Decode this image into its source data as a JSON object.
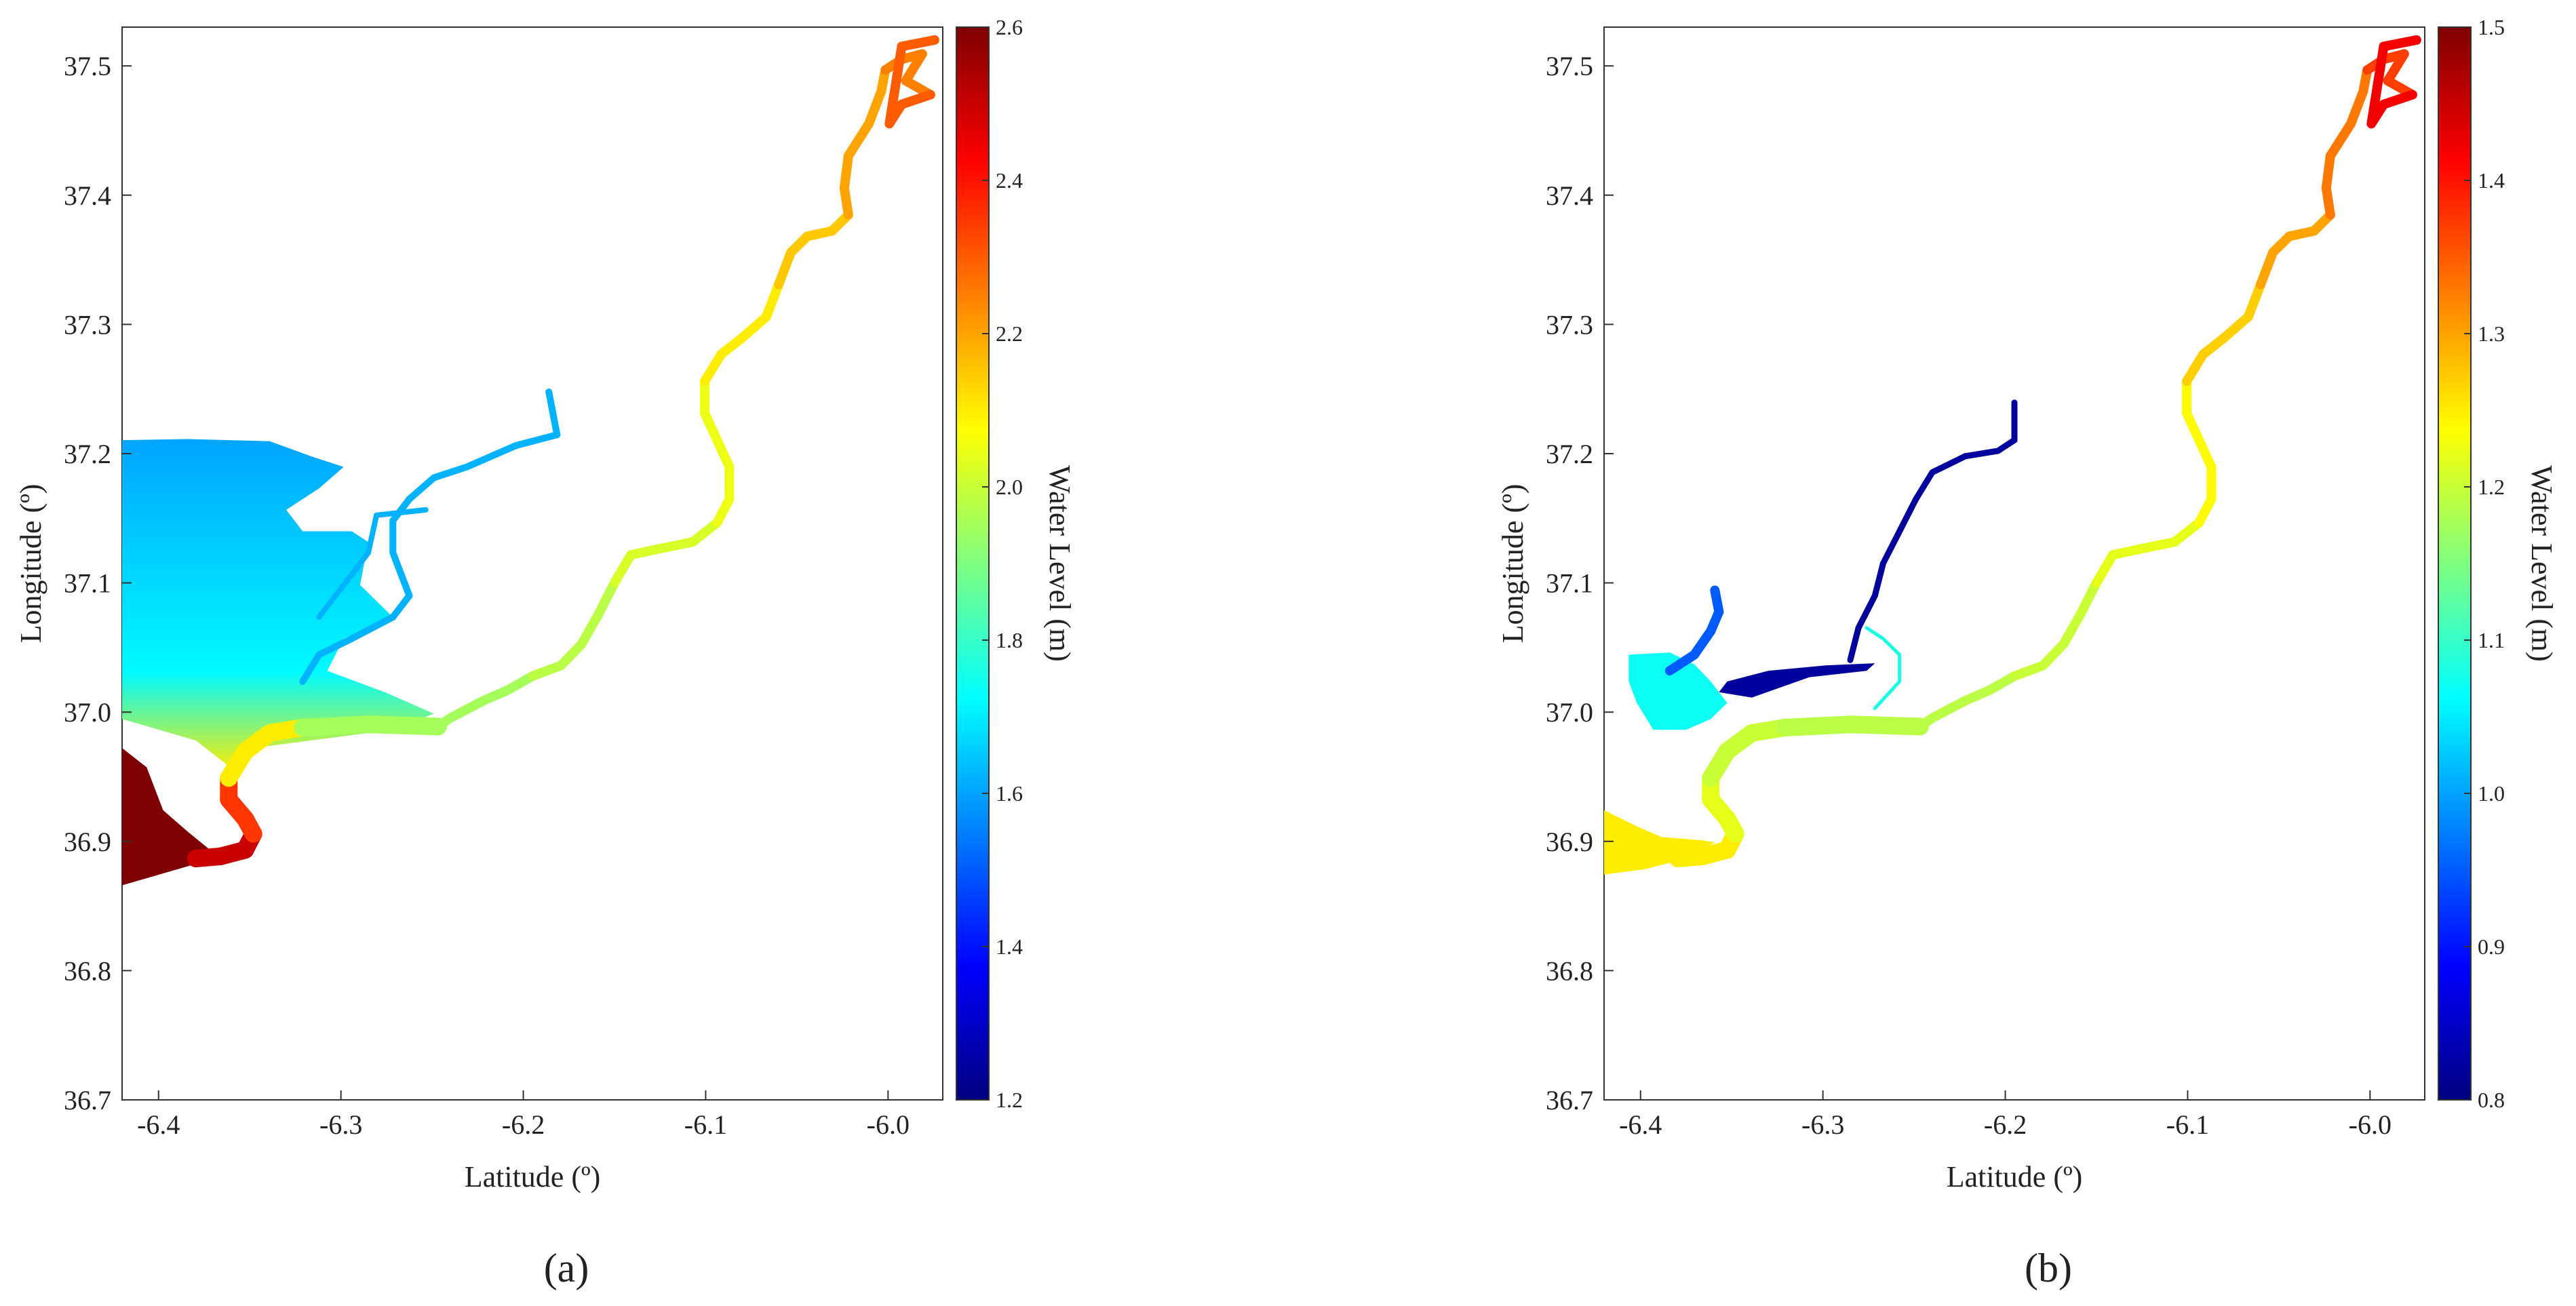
{
  "colormap": [
    "#00007f",
    "#0000ff",
    "#007fff",
    "#00ffff",
    "#7fff7f",
    "#ffff00",
    "#ff7f00",
    "#ff0000",
    "#7f0000"
  ],
  "panels": [
    {
      "id": "a",
      "label": "(a)",
      "xlabel": "Latitude (º)",
      "ylabel": "Longitude (º)",
      "x_ticks": [
        "-6.4",
        "-6.3",
        "-6.2",
        "-6.1",
        "-6.0"
      ],
      "x_tick_values": [
        -6.4,
        -6.3,
        -6.2,
        -6.1,
        -6.0
      ],
      "y_ticks": [
        "36.7",
        "36.8",
        "36.9",
        "37.0",
        "37.1",
        "37.2",
        "37.3",
        "37.4",
        "37.5"
      ],
      "y_tick_values": [
        36.7,
        36.8,
        36.9,
        37.0,
        37.1,
        37.2,
        37.3,
        37.4,
        37.5
      ],
      "xlim": [
        -6.42,
        -5.97
      ],
      "ylim": [
        36.7,
        37.53
      ],
      "colorbar": {
        "title": "Water Level (m)",
        "range": [
          1.2,
          2.6
        ],
        "ticks": [
          "1.2",
          "1.4",
          "1.6",
          "1.8",
          "2.0",
          "2.2",
          "2.4",
          "2.6"
        ],
        "tick_values": [
          1.2,
          1.4,
          1.6,
          1.8,
          2.0,
          2.2,
          2.4,
          2.6
        ]
      },
      "features": {
        "ocean_level": 2.6,
        "marsh_level_north": 1.6,
        "marsh_level_south": 1.72,
        "mouth_levels": [
          2.5,
          2.35,
          2.1,
          1.95
        ],
        "river_levels": [
          1.95,
          1.98,
          2.02,
          2.05,
          2.1,
          2.15,
          2.2,
          2.25,
          2.3
        ],
        "tributary_level": 1.62
      }
    },
    {
      "id": "b",
      "label": "(b)",
      "xlabel": "Latitude (º)",
      "ylabel": "Longitude (º)",
      "x_ticks": [
        "-6.4",
        "-6.3",
        "-6.2",
        "-6.1",
        "-6.0"
      ],
      "x_tick_values": [
        -6.4,
        -6.3,
        -6.2,
        -6.1,
        -6.0
      ],
      "y_ticks": [
        "36.7",
        "36.8",
        "36.9",
        "37.0",
        "37.1",
        "37.2",
        "37.3",
        "37.4",
        "37.5"
      ],
      "y_tick_values": [
        36.7,
        36.8,
        36.9,
        37.0,
        37.1,
        37.2,
        37.3,
        37.4,
        37.5
      ],
      "xlim": [
        -6.42,
        -5.97
      ],
      "ylim": [
        36.7,
        37.53
      ],
      "colorbar": {
        "title": "Water Level (m)",
        "range": [
          0.8,
          1.5
        ],
        "ticks": [
          "0.8",
          "0.9",
          "1.0",
          "1.1",
          "1.2",
          "1.3",
          "1.4",
          "1.5"
        ],
        "tick_values": [
          0.8,
          0.9,
          1.0,
          1.1,
          1.2,
          1.3,
          1.4,
          1.5
        ]
      },
      "features": {
        "ocean_level": 1.25,
        "marsh_level": 1.07,
        "channel_dark_level": 0.82,
        "channel_blue_level": 0.95,
        "connector_level": 1.08,
        "mouth_levels": [
          1.25,
          1.22,
          1.2,
          1.19
        ],
        "river_levels": [
          1.19,
          1.2,
          1.22,
          1.24,
          1.27,
          1.3,
          1.33,
          1.37,
          1.42
        ]
      }
    }
  ]
}
